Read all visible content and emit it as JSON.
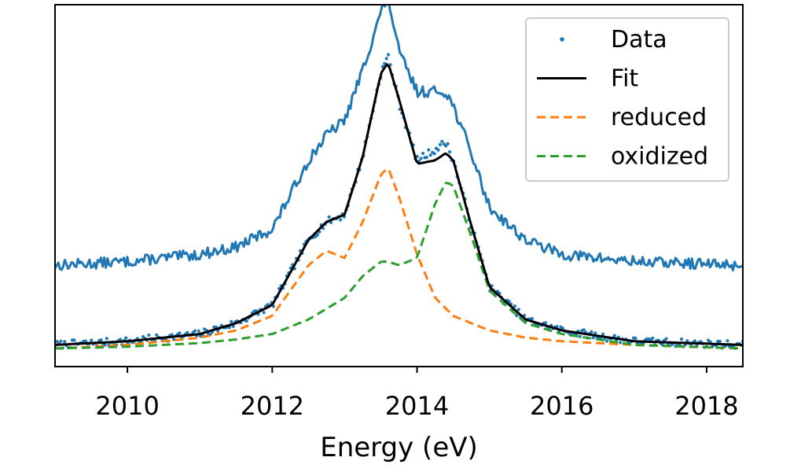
{
  "chart_data": {
    "type": "line",
    "title": "",
    "xlabel": "Energy (eV)",
    "ylabel": "",
    "xlim": [
      2009.0,
      2018.5
    ],
    "ylim": [
      0.0,
      1.0
    ],
    "x_ticks": [
      "2010",
      "2012",
      "2014",
      "2016",
      "2018"
    ],
    "x_tick_values": [
      2010,
      2012,
      2014,
      2016,
      2018
    ],
    "y_ticks": [],
    "grid": false,
    "legend_position": "top-right",
    "legend": [
      {
        "label": "Data",
        "style": "dots",
        "color": "#1f77b4"
      },
      {
        "label": "Fit",
        "style": "solid",
        "color": "#000000"
      },
      {
        "label": "reduced",
        "style": "dashed",
        "color": "#ff7f0e"
      },
      {
        "label": "oxidized",
        "style": "dashed",
        "color": "#2ca02c"
      }
    ],
    "series": [
      {
        "name": "Data",
        "kind": "dots",
        "color": "#1f77b4",
        "x": [
          2009.0,
          2010.0,
          2011.0,
          2011.5,
          2012.0,
          2012.5,
          2012.75,
          2013.0,
          2013.25,
          2013.5,
          2013.6,
          2013.75,
          2014.0,
          2014.25,
          2014.4,
          2014.5,
          2014.75,
          2015.0,
          2015.5,
          2016.0,
          2017.0,
          2018.5
        ],
        "y": [
          0.06,
          0.07,
          0.09,
          0.12,
          0.17,
          0.35,
          0.4,
          0.42,
          0.58,
          0.81,
          0.86,
          0.73,
          0.57,
          0.6,
          0.62,
          0.57,
          0.39,
          0.22,
          0.13,
          0.1,
          0.07,
          0.06
        ]
      },
      {
        "name": "",
        "kind": "line",
        "color": "#1f77b4",
        "x": [
          2009.0,
          2010.0,
          2011.0,
          2011.5,
          2012.0,
          2012.5,
          2012.75,
          2013.0,
          2013.25,
          2013.5,
          2013.6,
          2013.75,
          2014.0,
          2014.25,
          2014.4,
          2014.5,
          2014.75,
          2015.0,
          2015.5,
          2016.0,
          2017.0,
          2018.5
        ],
        "y": [
          0.28,
          0.29,
          0.31,
          0.33,
          0.38,
          0.57,
          0.64,
          0.68,
          0.82,
          0.98,
          1.02,
          0.87,
          0.76,
          0.76,
          0.76,
          0.72,
          0.59,
          0.44,
          0.35,
          0.31,
          0.29,
          0.28
        ]
      },
      {
        "name": "Fit",
        "kind": "solid",
        "color": "#000000",
        "x": [
          2009.0,
          2010.0,
          2011.0,
          2011.5,
          2012.0,
          2012.5,
          2012.75,
          2013.0,
          2013.25,
          2013.5,
          2013.6,
          2013.75,
          2014.0,
          2014.25,
          2014.4,
          2014.5,
          2014.75,
          2015.0,
          2015.5,
          2016.0,
          2017.0,
          2018.5
        ],
        "y": [
          0.06,
          0.07,
          0.09,
          0.12,
          0.17,
          0.35,
          0.4,
          0.42,
          0.58,
          0.81,
          0.84,
          0.74,
          0.56,
          0.57,
          0.59,
          0.57,
          0.39,
          0.22,
          0.13,
          0.1,
          0.07,
          0.06
        ]
      },
      {
        "name": "reduced",
        "kind": "dashed",
        "color": "#ff7f0e",
        "x": [
          2009.0,
          2010.0,
          2011.0,
          2011.5,
          2012.0,
          2012.5,
          2012.75,
          2013.0,
          2013.25,
          2013.5,
          2013.6,
          2013.75,
          2014.0,
          2014.25,
          2014.5,
          2015.0,
          2015.5,
          2016.0,
          2017.0,
          2018.5
        ],
        "y": [
          0.05,
          0.06,
          0.08,
          0.1,
          0.14,
          0.28,
          0.32,
          0.3,
          0.4,
          0.53,
          0.55,
          0.47,
          0.31,
          0.19,
          0.14,
          0.1,
          0.08,
          0.07,
          0.06,
          0.05
        ]
      },
      {
        "name": "oxidized",
        "kind": "dashed",
        "color": "#2ca02c",
        "x": [
          2009.0,
          2010.0,
          2011.0,
          2011.5,
          2012.0,
          2012.5,
          2012.75,
          2013.0,
          2013.25,
          2013.5,
          2013.6,
          2013.75,
          2014.0,
          2014.25,
          2014.4,
          2014.5,
          2014.75,
          2015.0,
          2015.5,
          2016.0,
          2017.0,
          2018.5
        ],
        "y": [
          0.05,
          0.055,
          0.065,
          0.075,
          0.09,
          0.13,
          0.16,
          0.19,
          0.25,
          0.29,
          0.29,
          0.28,
          0.3,
          0.45,
          0.51,
          0.5,
          0.36,
          0.21,
          0.12,
          0.09,
          0.06,
          0.05
        ]
      }
    ]
  }
}
